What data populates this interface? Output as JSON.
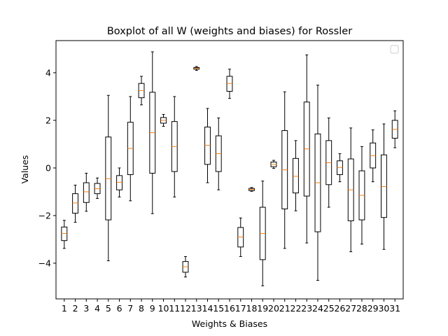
{
  "chart_data": {
    "type": "boxplot",
    "title": "Boxplot of all W (weights and biases) for Rossler",
    "xlabel": "Weights & Biases",
    "ylabel": "Values",
    "ylim": [
      -5.5,
      5.35
    ],
    "yticks": [
      -4,
      -2,
      0,
      2,
      4
    ],
    "ytick_labels": [
      "−4",
      "−2",
      "0",
      "2",
      "4"
    ],
    "categories": [
      "1",
      "2",
      "3",
      "4",
      "5",
      "6",
      "7",
      "8",
      "9",
      "10",
      "11",
      "12",
      "13",
      "14",
      "15",
      "16",
      "17",
      "18",
      "19",
      "20",
      "21",
      "22",
      "23",
      "24",
      "25",
      "26",
      "27",
      "28",
      "29",
      "30",
      "31"
    ],
    "legend": {
      "placement": "top-right",
      "entries": []
    },
    "grid": false,
    "colors": {
      "box": "#000000",
      "whisker": "#000000",
      "median": "#ff7f0e"
    },
    "boxes": [
      {
        "label": "1",
        "whislo": -3.38,
        "q1": -3.05,
        "med": -2.75,
        "q3": -2.48,
        "whishi": -2.2
      },
      {
        "label": "2",
        "whislo": -2.28,
        "q1": -1.9,
        "med": -1.47,
        "q3": -1.08,
        "whishi": -0.72
      },
      {
        "label": "3",
        "whislo": -1.82,
        "q1": -1.45,
        "med": -1.0,
        "q3": -0.62,
        "whishi": -0.22
      },
      {
        "label": "4",
        "whislo": -1.28,
        "q1": -1.08,
        "med": -0.87,
        "q3": -0.65,
        "whishi": -0.42
      },
      {
        "label": "5",
        "whislo": -3.9,
        "q1": -2.18,
        "med": -0.45,
        "q3": 1.3,
        "whishi": 3.05
      },
      {
        "label": "6",
        "whislo": -1.22,
        "q1": -0.92,
        "med": -0.6,
        "q3": -0.32,
        "whishi": 0.0
      },
      {
        "label": "7",
        "whislo": -1.38,
        "q1": -0.28,
        "med": 0.82,
        "q3": 1.92,
        "whishi": 3.0
      },
      {
        "label": "8",
        "whislo": 2.65,
        "q1": 2.95,
        "med": 3.25,
        "q3": 3.55,
        "whishi": 3.85
      },
      {
        "label": "9",
        "whislo": -1.92,
        "q1": -0.22,
        "med": 1.48,
        "q3": 3.18,
        "whishi": 4.88
      },
      {
        "label": "10",
        "whislo": 1.75,
        "q1": 1.88,
        "med": 2.0,
        "q3": 2.12,
        "whishi": 2.25
      },
      {
        "label": "11",
        "whislo": -1.22,
        "q1": -0.15,
        "med": 0.9,
        "q3": 1.95,
        "whishi": 3.0
      },
      {
        "label": "12",
        "whislo": -4.58,
        "q1": -4.38,
        "med": -4.15,
        "q3": -3.93,
        "whishi": -3.72
      },
      {
        "label": "13",
        "whislo": 4.1,
        "q1": 4.15,
        "med": 4.18,
        "q3": 4.22,
        "whishi": 4.26
      },
      {
        "label": "14",
        "whislo": -0.62,
        "q1": 0.15,
        "med": 0.95,
        "q3": 1.72,
        "whishi": 2.5
      },
      {
        "label": "15",
        "whislo": -0.92,
        "q1": -0.15,
        "med": 0.6,
        "q3": 1.35,
        "whishi": 2.1
      },
      {
        "label": "16",
        "whislo": 2.92,
        "q1": 3.22,
        "med": 3.55,
        "q3": 3.85,
        "whishi": 4.15
      },
      {
        "label": "17",
        "whislo": -3.72,
        "q1": -3.32,
        "med": -2.9,
        "q3": -2.5,
        "whishi": -2.1
      },
      {
        "label": "18",
        "whislo": -0.98,
        "q1": -0.95,
        "med": -0.9,
        "q3": -0.86,
        "whishi": -0.82
      },
      {
        "label": "19",
        "whislo": -4.95,
        "q1": -3.85,
        "med": -2.75,
        "q3": -1.65,
        "whishi": -0.55
      },
      {
        "label": "20",
        "whislo": -0.02,
        "q1": 0.05,
        "med": 0.15,
        "q3": 0.25,
        "whishi": 0.32
      },
      {
        "label": "21",
        "whislo": -3.38,
        "q1": -1.72,
        "med": -0.08,
        "q3": 1.57,
        "whishi": 3.2
      },
      {
        "label": "22",
        "whislo": -1.8,
        "q1": -1.05,
        "med": -0.35,
        "q3": 0.4,
        "whishi": 1.15
      },
      {
        "label": "23",
        "whislo": -3.15,
        "q1": -1.18,
        "med": 0.8,
        "q3": 2.77,
        "whishi": 4.75
      },
      {
        "label": "24",
        "whislo": -4.72,
        "q1": -2.68,
        "med": -0.62,
        "q3": 1.43,
        "whishi": 3.48
      },
      {
        "label": "25",
        "whislo": -1.65,
        "q1": -0.7,
        "med": 0.22,
        "q3": 1.15,
        "whishi": 2.1
      },
      {
        "label": "26",
        "whislo": -0.58,
        "q1": -0.28,
        "med": 0.02,
        "q3": 0.3,
        "whishi": 0.6
      },
      {
        "label": "27",
        "whislo": -3.52,
        "q1": -2.22,
        "med": -0.92,
        "q3": 0.38,
        "whishi": 1.68
      },
      {
        "label": "28",
        "whislo": -3.2,
        "q1": -2.18,
        "med": -1.15,
        "q3": -0.12,
        "whishi": 0.9
      },
      {
        "label": "29",
        "whislo": -0.58,
        "q1": 0.0,
        "med": 0.52,
        "q3": 1.05,
        "whishi": 1.6
      },
      {
        "label": "30",
        "whislo": -3.42,
        "q1": -2.08,
        "med": -0.78,
        "q3": 0.55,
        "whishi": 1.85
      },
      {
        "label": "31",
        "whislo": 0.85,
        "q1": 1.25,
        "med": 1.62,
        "q3": 2.0,
        "whishi": 2.4
      }
    ]
  }
}
